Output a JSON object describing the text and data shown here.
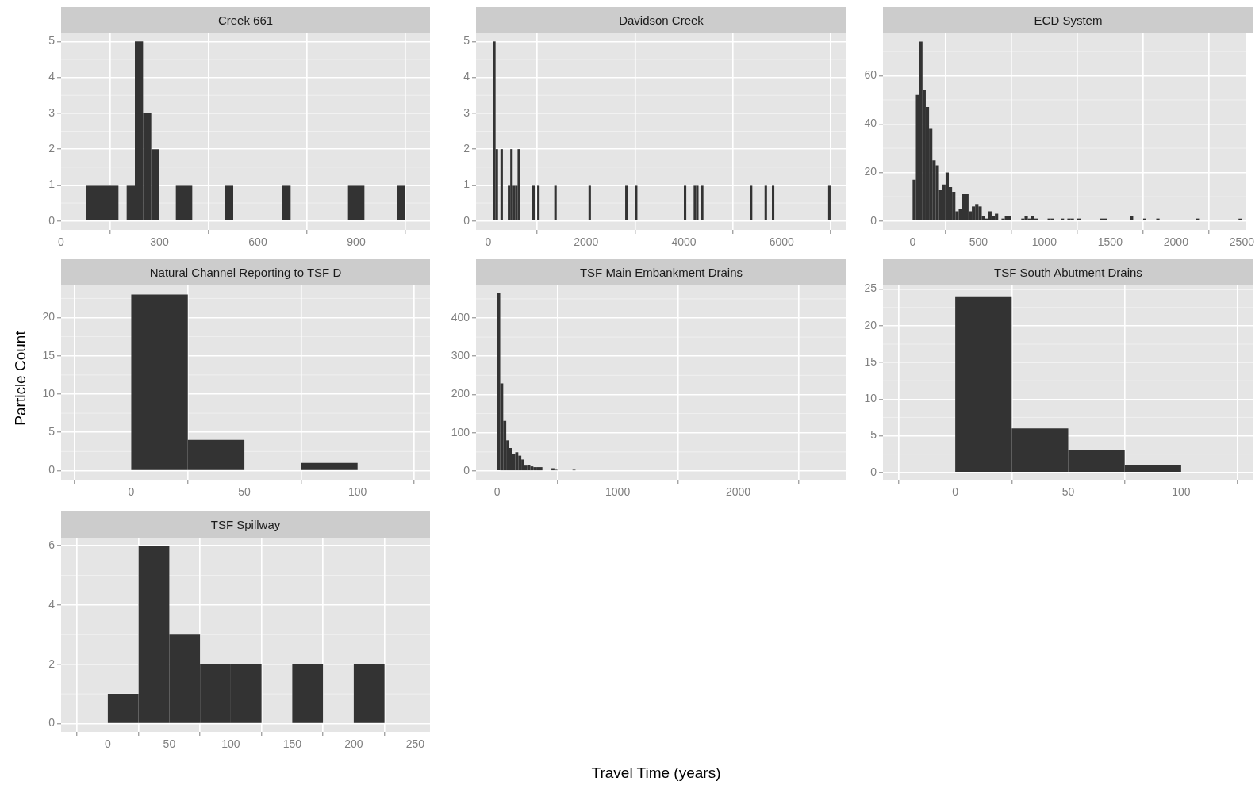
{
  "chart_data": [
    {
      "type": "histogram",
      "title": "Creek 661",
      "color": "#333333",
      "grid": true,
      "bins": [
        75,
        100,
        125,
        150,
        175,
        200,
        225,
        250,
        275,
        300,
        325,
        350,
        375,
        400,
        425,
        450,
        475,
        500,
        525,
        550,
        575,
        600,
        625,
        650,
        675,
        700,
        725,
        750,
        775,
        800,
        825,
        850,
        875,
        900,
        925,
        950,
        975,
        1000,
        1025,
        1050
      ],
      "values": [
        1,
        1,
        1,
        1,
        0,
        1,
        5,
        3,
        2,
        0,
        0,
        1,
        1,
        0,
        0,
        0,
        0,
        1,
        0,
        0,
        0,
        0,
        0,
        0,
        1,
        0,
        0,
        0,
        0,
        0,
        0,
        0,
        1,
        1,
        0,
        0,
        0,
        0,
        1
      ],
      "xlim": [
        0,
        1125
      ],
      "xticks": [
        0,
        300,
        600,
        900
      ],
      "ylim": [
        -0.25,
        5.25
      ],
      "yticks": [
        0,
        1,
        2,
        3,
        4,
        5
      ]
    },
    {
      "type": "histogram",
      "title": "Davidson Creek",
      "color": "#333333",
      "grid": true,
      "bins": [
        100,
        150,
        200,
        250,
        300,
        400,
        450,
        500,
        550,
        600,
        650,
        900,
        950,
        1000,
        1050,
        1350,
        1400,
        2050,
        2100,
        2800,
        2850,
        3000,
        3050,
        4000,
        4050,
        4200,
        4250,
        4300,
        4350,
        4400,
        5350,
        5400,
        5650,
        5700,
        5800,
        5850,
        6950,
        7000
      ],
      "values": [
        5,
        2,
        0,
        2,
        0,
        1,
        2,
        1,
        1,
        2,
        0,
        1,
        0,
        1,
        0,
        1,
        0,
        1,
        0,
        1,
        0,
        1,
        0,
        1,
        0,
        1,
        1,
        0,
        1,
        0,
        1,
        0,
        1,
        0,
        1,
        0,
        1
      ],
      "xlim": [
        -250,
        7325
      ],
      "xticks": [
        0,
        2000,
        4000,
        6000
      ],
      "ylim": [
        -0.25,
        5.25
      ],
      "yticks": [
        0,
        1,
        2,
        3,
        4,
        5
      ]
    },
    {
      "type": "histogram",
      "title": "ECD System",
      "color": "#333333",
      "grid": true,
      "bins": [
        0,
        25,
        50,
        75,
        100,
        125,
        150,
        175,
        200,
        225,
        250,
        275,
        300,
        325,
        350,
        375,
        400,
        425,
        450,
        475,
        500,
        525,
        550,
        575,
        600,
        625,
        650,
        675,
        700,
        725,
        750,
        825,
        850,
        875,
        900,
        925,
        950,
        1025,
        1050,
        1075,
        1125,
        1150,
        1175,
        1200,
        1225,
        1250,
        1275,
        1425,
        1450,
        1475,
        1650,
        1675,
        1750,
        1775,
        1850,
        1875,
        2150,
        2175,
        2475,
        2500
      ],
      "values": [
        17,
        52,
        74,
        54,
        47,
        38,
        25,
        23,
        13,
        15,
        20,
        14,
        12,
        4,
        5,
        11,
        11,
        4,
        6,
        7,
        6,
        2,
        1,
        4,
        2,
        3,
        0,
        1,
        2,
        2,
        0,
        1,
        2,
        1,
        2,
        1,
        0,
        1,
        1,
        0,
        1,
        0,
        1,
        1,
        0,
        1,
        0,
        1,
        1,
        0,
        2,
        0,
        1,
        0,
        1,
        0,
        1,
        0,
        1
      ],
      "xlim": [
        -225,
        2530
      ],
      "xticks": [
        0,
        500,
        1000,
        1500,
        2000,
        2500
      ],
      "ylim": [
        -3.7,
        77.8
      ],
      "yticks": [
        0,
        20,
        40,
        60
      ]
    },
    {
      "type": "histogram",
      "title": "Natural Channel Reporting to TSF D",
      "ylabel": "Particle Count",
      "color": "#333333",
      "grid": true,
      "bins": [
        0,
        25,
        50,
        75,
        100
      ],
      "values": [
        23,
        4,
        0,
        1
      ],
      "xlim": [
        -31,
        132
      ],
      "xticks": [
        0,
        50,
        100
      ],
      "ylim": [
        -1.2,
        24.2
      ],
      "yticks": [
        0,
        5,
        10,
        15,
        20
      ]
    },
    {
      "type": "histogram",
      "title": "TSF Main Embankment Drains",
      "xlabel": "Travel Time (years)",
      "color": "#333333",
      "grid": true,
      "bins": [
        0,
        25,
        50,
        75,
        100,
        125,
        150,
        175,
        200,
        225,
        250,
        275,
        300,
        325,
        350,
        375,
        450,
        475,
        500,
        625,
        650
      ],
      "values": [
        465,
        229,
        131,
        80,
        60,
        44,
        49,
        40,
        30,
        14,
        16,
        12,
        10,
        10,
        10,
        0,
        7,
        3,
        0,
        3
      ],
      "xlim": [
        -176,
        2899
      ],
      "xticks": [
        0,
        1000,
        2000
      ],
      "ylim": [
        -23,
        485
      ],
      "yticks": [
        0,
        100,
        200,
        300,
        400
      ]
    },
    {
      "type": "histogram",
      "title": "TSF South Abutment Drains",
      "color": "#333333",
      "grid": true,
      "bins": [
        0,
        25,
        50,
        75,
        100
      ],
      "values": [
        24,
        6,
        3,
        1
      ],
      "xlim": [
        -32,
        132
      ],
      "xticks": [
        0,
        50,
        100
      ],
      "ylim": [
        -1,
        25.5
      ],
      "yticks": [
        0,
        5,
        10,
        15,
        20,
        25
      ]
    },
    {
      "type": "histogram",
      "title": "TSF Spillway",
      "color": "#333333",
      "grid": true,
      "bins": [
        0,
        25,
        50,
        75,
        100,
        125,
        150,
        175,
        200,
        225
      ],
      "values": [
        1,
        6,
        3,
        2,
        2,
        0,
        2,
        0,
        2
      ],
      "xlim": [
        -38,
        262
      ],
      "xticks": [
        0,
        50,
        100,
        150,
        200,
        250
      ],
      "ylim": [
        -0.28,
        6.27
      ],
      "yticks": [
        0,
        2,
        4,
        6
      ]
    }
  ]
}
